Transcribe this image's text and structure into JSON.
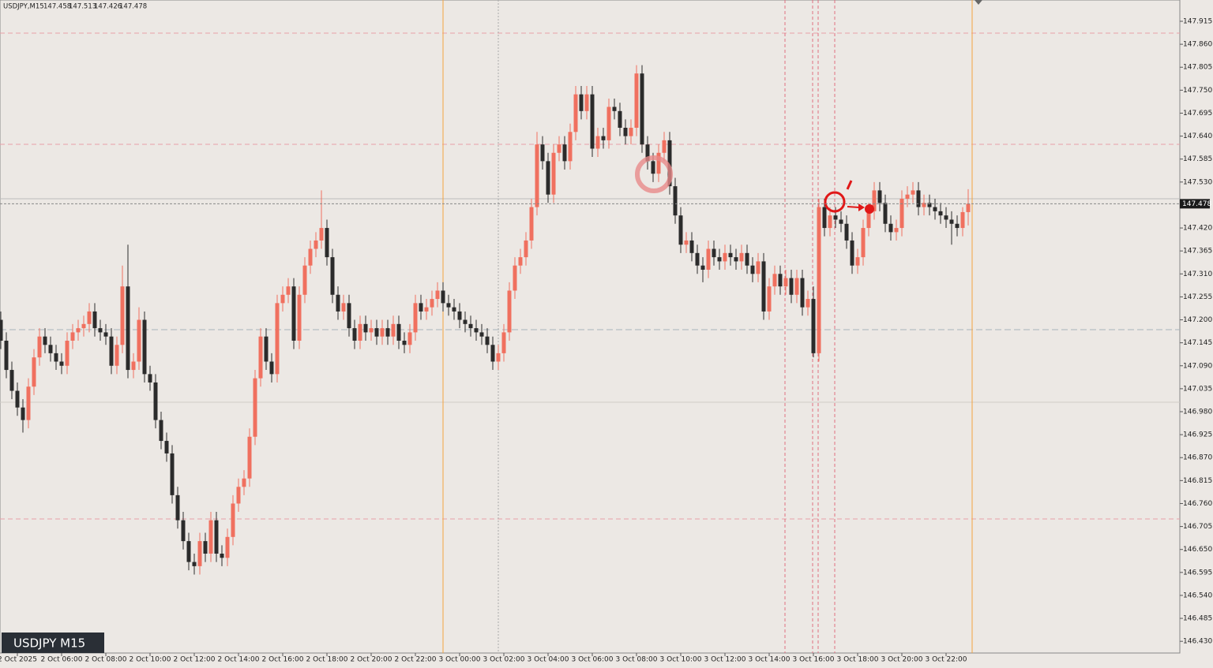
{
  "chart_data": {
    "type": "candlestick",
    "symbol": "USDJPY,M15",
    "watermark": "USDJPY M15",
    "bull_color": "#f0705f",
    "bear_color": "#2b2b2b",
    "ylim": [
      146.402,
      147.966
    ],
    "yticks": [
      147.915,
      {
        "value": 147.86,
        "label": "147.860"
      },
      147.805,
      {
        "value": 147.75,
        "label": "147.750"
      },
      147.695,
      {
        "value": 147.64,
        "label": "147.640"
      },
      147.585,
      {
        "value": 147.53,
        "label": "147.530"
      },
      {
        "value": 147.42,
        "label": "147.420"
      },
      147.365,
      {
        "value": 147.31,
        "label": "147.310"
      },
      147.255,
      {
        "value": 147.2,
        "label": "147.200"
      },
      147.145,
      {
        "value": 147.09,
        "label": "147.090"
      },
      147.035,
      {
        "value": 146.98,
        "label": "146.980"
      },
      146.925,
      {
        "value": 146.87,
        "label": "146.870"
      },
      146.815,
      {
        "value": 146.76,
        "label": "146.760"
      },
      146.705,
      {
        "value": 146.65,
        "label": "146.650"
      },
      146.595,
      {
        "value": 146.54,
        "label": "146.540"
      },
      146.485,
      {
        "value": 146.43,
        "label": "146.430"
      }
    ],
    "categories": [
      null,
      null,
      null,
      "2 Oct 2025",
      null,
      null,
      null,
      null,
      null,
      null,
      null,
      "2 Oct 06:00",
      null,
      null,
      null,
      null,
      null,
      null,
      null,
      "2 Oct 08:00",
      null,
      null,
      null,
      null,
      null,
      null,
      null,
      "2 Oct 10:00",
      null,
      null,
      null,
      null,
      null,
      null,
      null,
      "2 Oct 12:00",
      null,
      null,
      null,
      null,
      null,
      null,
      null,
      "2 Oct 14:00",
      null,
      null,
      null,
      null,
      null,
      null,
      null,
      "2 Oct 16:00",
      null,
      null,
      null,
      null,
      null,
      null,
      null,
      "2 Oct 18:00",
      null,
      null,
      null,
      null,
      null,
      null,
      null,
      "2 Oct 20:00",
      null,
      null,
      null,
      null,
      null,
      null,
      null,
      "2 Oct 22:00",
      null,
      null,
      null,
      null,
      null,
      null,
      null,
      "3 Oct 00:00",
      null,
      null,
      null,
      null,
      null,
      null,
      null,
      "3 Oct 02:00",
      null,
      null,
      null,
      null,
      null,
      null,
      null,
      "3 Oct 04:00",
      null,
      null,
      null,
      null,
      null,
      null,
      null,
      "3 Oct 06:00",
      null,
      null,
      null,
      null,
      null,
      null,
      null,
      "3 Oct 08:00",
      null,
      null,
      null,
      null,
      null,
      null,
      null,
      "3 Oct 10:00",
      null,
      null,
      null,
      null,
      null,
      null,
      null,
      "3 Oct 12:00",
      null,
      null,
      null,
      null,
      null,
      null,
      null,
      "3 Oct 14:00",
      null,
      null,
      null,
      null,
      null,
      null,
      null,
      "3 Oct 16:00",
      null,
      null,
      null,
      null,
      null,
      null,
      null,
      "3 Oct 18:00",
      null,
      null,
      null,
      null,
      null,
      null,
      null,
      "3 Oct 20:00",
      null,
      null,
      null,
      null,
      null,
      null,
      null,
      "3 Oct 22:00",
      null,
      null,
      null,
      null
    ],
    "candles": [
      [
        147.2,
        147.22,
        147.13,
        147.15
      ],
      [
        147.15,
        147.17,
        147.06,
        147.08
      ],
      [
        147.08,
        147.1,
        147.01,
        147.03
      ],
      [
        147.03,
        147.05,
        146.97,
        146.99
      ],
      [
        146.99,
        147.01,
        146.93,
        146.96
      ],
      [
        146.96,
        147.06,
        146.94,
        147.04
      ],
      [
        147.04,
        147.13,
        147.02,
        147.11
      ],
      [
        147.11,
        147.18,
        147.09,
        147.16
      ],
      [
        147.16,
        147.18,
        147.12,
        147.14
      ],
      [
        147.14,
        147.16,
        147.1,
        147.12
      ],
      [
        147.12,
        147.14,
        147.08,
        147.1
      ],
      [
        147.1,
        147.12,
        147.07,
        147.09
      ],
      [
        147.09,
        147.17,
        147.07,
        147.15
      ],
      [
        147.15,
        147.19,
        147.13,
        147.17
      ],
      [
        147.17,
        147.2,
        147.15,
        147.18
      ],
      [
        147.18,
        147.21,
        147.16,
        147.19
      ],
      [
        147.19,
        147.24,
        147.17,
        147.22
      ],
      [
        147.22,
        147.24,
        147.16,
        147.18
      ],
      [
        147.18,
        147.2,
        147.15,
        147.17
      ],
      [
        147.17,
        147.19,
        147.14,
        147.16
      ],
      [
        147.16,
        147.18,
        147.07,
        147.09
      ],
      [
        147.09,
        147.16,
        147.07,
        147.14
      ],
      [
        147.14,
        147.33,
        147.12,
        147.28
      ],
      [
        147.28,
        147.38,
        147.06,
        147.08
      ],
      [
        147.08,
        147.12,
        147.06,
        147.1
      ],
      [
        147.1,
        147.23,
        147.08,
        147.2
      ],
      [
        147.2,
        147.22,
        147.05,
        147.07
      ],
      [
        147.07,
        147.09,
        147.03,
        147.05
      ],
      [
        147.05,
        147.07,
        146.94,
        146.96
      ],
      [
        146.96,
        146.98,
        146.89,
        146.91
      ],
      [
        146.91,
        146.93,
        146.86,
        146.88
      ],
      [
        146.88,
        146.9,
        146.76,
        146.78
      ],
      [
        146.78,
        146.8,
        146.7,
        146.72
      ],
      [
        146.72,
        146.74,
        146.65,
        146.67
      ],
      [
        146.67,
        146.69,
        146.6,
        146.62
      ],
      [
        146.62,
        146.64,
        146.59,
        146.61
      ],
      [
        146.61,
        146.69,
        146.59,
        146.67
      ],
      [
        146.67,
        146.69,
        146.62,
        146.64
      ],
      [
        146.64,
        146.74,
        146.62,
        146.72
      ],
      [
        146.72,
        146.74,
        146.62,
        146.64
      ],
      [
        146.64,
        146.66,
        146.61,
        146.63
      ],
      [
        146.63,
        146.7,
        146.61,
        146.68
      ],
      [
        146.68,
        146.78,
        146.66,
        146.76
      ],
      [
        146.76,
        146.82,
        146.74,
        146.8
      ],
      [
        146.8,
        146.84,
        146.78,
        146.82
      ],
      [
        146.82,
        146.94,
        146.8,
        146.92
      ],
      [
        146.92,
        147.08,
        146.9,
        147.06
      ],
      [
        147.06,
        147.18,
        147.04,
        147.16
      ],
      [
        147.16,
        147.18,
        147.08,
        147.1
      ],
      [
        147.1,
        147.12,
        147.05,
        147.07
      ],
      [
        147.07,
        147.26,
        147.05,
        147.24
      ],
      [
        147.24,
        147.28,
        147.22,
        147.26
      ],
      [
        147.26,
        147.3,
        147.24,
        147.28
      ],
      [
        147.28,
        147.3,
        147.13,
        147.15
      ],
      [
        147.15,
        147.28,
        147.13,
        147.26
      ],
      [
        147.26,
        147.35,
        147.24,
        147.33
      ],
      [
        147.33,
        147.39,
        147.31,
        147.37
      ],
      [
        147.37,
        147.41,
        147.35,
        147.39
      ],
      [
        147.39,
        147.51,
        147.37,
        147.42
      ],
      [
        147.42,
        147.44,
        147.33,
        147.35
      ],
      [
        147.35,
        147.37,
        147.24,
        147.26
      ],
      [
        147.26,
        147.28,
        147.2,
        147.22
      ],
      [
        147.22,
        147.26,
        147.2,
        147.24
      ],
      [
        147.24,
        147.26,
        147.16,
        147.18
      ],
      [
        147.18,
        147.2,
        147.13,
        147.15
      ],
      [
        147.15,
        147.21,
        147.13,
        147.19
      ],
      [
        147.19,
        147.21,
        147.15,
        147.17
      ],
      [
        147.17,
        147.2,
        147.15,
        147.18
      ],
      [
        147.18,
        147.2,
        147.14,
        147.16
      ],
      [
        147.16,
        147.2,
        147.14,
        147.18
      ],
      [
        147.18,
        147.2,
        147.14,
        147.16
      ],
      [
        147.16,
        147.21,
        147.14,
        147.19
      ],
      [
        147.19,
        147.21,
        147.13,
        147.15
      ],
      [
        147.15,
        147.17,
        147.12,
        147.14
      ],
      [
        147.14,
        147.19,
        147.12,
        147.17
      ],
      [
        147.17,
        147.26,
        147.15,
        147.24
      ],
      [
        147.24,
        147.26,
        147.2,
        147.22
      ],
      [
        147.22,
        147.25,
        147.2,
        147.23
      ],
      [
        147.23,
        147.27,
        147.21,
        147.25
      ],
      [
        147.25,
        147.29,
        147.23,
        147.27
      ],
      [
        147.27,
        147.29,
        147.22,
        147.24
      ],
      [
        147.24,
        147.26,
        147.21,
        147.23
      ],
      [
        147.23,
        147.25,
        147.2,
        147.22
      ],
      [
        147.22,
        147.24,
        147.18,
        147.2
      ],
      [
        147.2,
        147.22,
        147.17,
        147.19
      ],
      [
        147.19,
        147.21,
        147.16,
        147.18
      ],
      [
        147.18,
        147.2,
        147.15,
        147.17
      ],
      [
        147.17,
        147.19,
        147.14,
        147.16
      ],
      [
        147.16,
        147.18,
        147.12,
        147.14
      ],
      [
        147.14,
        147.16,
        147.08,
        147.1
      ],
      [
        147.1,
        147.14,
        147.08,
        147.12
      ],
      [
        147.12,
        147.19,
        147.1,
        147.17
      ],
      [
        147.17,
        147.29,
        147.15,
        147.27
      ],
      [
        147.27,
        147.35,
        147.25,
        147.33
      ],
      [
        147.33,
        147.37,
        147.31,
        147.35
      ],
      [
        147.35,
        147.41,
        147.33,
        147.39
      ],
      [
        147.39,
        147.49,
        147.37,
        147.47
      ],
      [
        147.47,
        147.65,
        147.45,
        147.62
      ],
      [
        147.62,
        147.64,
        147.56,
        147.58
      ],
      [
        147.58,
        147.6,
        147.48,
        147.5
      ],
      [
        147.5,
        147.62,
        147.48,
        147.6
      ],
      [
        147.6,
        147.64,
        147.58,
        147.62
      ],
      [
        147.62,
        147.64,
        147.56,
        147.58
      ],
      [
        147.58,
        147.67,
        147.56,
        147.65
      ],
      [
        147.65,
        147.76,
        147.63,
        147.74
      ],
      [
        147.74,
        147.76,
        147.68,
        147.7
      ],
      [
        147.7,
        147.76,
        147.68,
        147.74
      ],
      [
        147.74,
        147.76,
        147.59,
        147.61
      ],
      [
        147.61,
        147.66,
        147.59,
        147.64
      ],
      [
        147.64,
        147.66,
        147.61,
        147.63
      ],
      [
        147.63,
        147.73,
        147.61,
        147.71
      ],
      [
        147.71,
        147.73,
        147.68,
        147.7
      ],
      [
        147.7,
        147.72,
        147.64,
        147.66
      ],
      [
        147.66,
        147.68,
        147.62,
        147.64
      ],
      [
        147.64,
        147.68,
        147.62,
        147.66
      ],
      [
        147.66,
        147.81,
        147.64,
        147.79
      ],
      [
        147.79,
        147.81,
        147.6,
        147.62
      ],
      [
        147.62,
        147.64,
        147.56,
        147.58
      ],
      [
        147.58,
        147.6,
        147.53,
        147.55
      ],
      [
        147.55,
        147.62,
        147.53,
        147.6
      ],
      [
        147.6,
        147.65,
        147.58,
        147.63
      ],
      [
        147.63,
        147.65,
        147.5,
        147.52
      ],
      [
        147.52,
        147.54,
        147.43,
        147.45
      ],
      [
        147.45,
        147.47,
        147.36,
        147.38
      ],
      [
        147.38,
        147.41,
        147.36,
        147.39
      ],
      [
        147.39,
        147.41,
        147.34,
        147.36
      ],
      [
        147.36,
        147.38,
        147.31,
        147.33
      ],
      [
        147.33,
        147.35,
        147.29,
        147.32
      ],
      [
        147.32,
        147.39,
        147.3,
        147.37
      ],
      [
        147.37,
        147.39,
        147.33,
        147.35
      ],
      [
        147.35,
        147.37,
        147.32,
        147.34
      ],
      [
        147.34,
        147.38,
        147.32,
        147.36
      ],
      [
        147.36,
        147.38,
        147.33,
        147.35
      ],
      [
        147.35,
        147.37,
        147.32,
        147.34
      ],
      [
        147.34,
        147.38,
        147.32,
        147.36
      ],
      [
        147.36,
        147.38,
        147.31,
        147.33
      ],
      [
        147.33,
        147.35,
        147.29,
        147.31
      ],
      [
        147.31,
        147.36,
        147.29,
        147.34
      ],
      [
        147.34,
        147.36,
        147.2,
        147.22
      ],
      [
        147.22,
        147.3,
        147.2,
        147.28
      ],
      [
        147.28,
        147.33,
        147.26,
        147.31
      ],
      [
        147.31,
        147.33,
        147.26,
        147.28
      ],
      [
        147.28,
        147.32,
        147.26,
        147.3
      ],
      [
        147.3,
        147.32,
        147.24,
        147.26
      ],
      [
        147.26,
        147.32,
        147.24,
        147.3
      ],
      [
        147.3,
        147.32,
        147.21,
        147.23
      ],
      [
        147.23,
        147.27,
        147.21,
        147.25
      ],
      [
        147.25,
        147.28,
        147.11,
        147.12
      ],
      [
        147.12,
        147.49,
        147.1,
        147.47
      ],
      [
        147.47,
        147.49,
        147.4,
        147.42
      ],
      [
        147.42,
        147.47,
        147.4,
        147.45
      ],
      [
        147.45,
        147.47,
        147.42,
        147.44
      ],
      [
        147.44,
        147.46,
        147.41,
        147.43
      ],
      [
        147.43,
        147.45,
        147.37,
        147.39
      ],
      [
        147.39,
        147.41,
        147.31,
        147.33
      ],
      [
        147.33,
        147.37,
        147.31,
        147.35
      ],
      [
        147.35,
        147.44,
        147.33,
        147.42
      ],
      [
        147.42,
        147.48,
        147.4,
        147.46
      ],
      [
        147.46,
        147.53,
        147.44,
        147.51
      ],
      [
        147.51,
        147.53,
        147.46,
        147.48
      ],
      [
        147.48,
        147.5,
        147.41,
        147.43
      ],
      [
        147.43,
        147.45,
        147.39,
        147.41
      ],
      [
        147.41,
        147.44,
        147.39,
        147.42
      ],
      [
        147.42,
        147.51,
        147.4,
        147.49
      ],
      [
        147.49,
        147.52,
        147.47,
        147.5
      ],
      [
        147.5,
        147.53,
        147.48,
        147.51
      ],
      [
        147.51,
        147.53,
        147.45,
        147.47
      ],
      [
        147.47,
        147.5,
        147.45,
        147.48
      ],
      [
        147.48,
        147.5,
        147.45,
        147.47
      ],
      [
        147.47,
        147.49,
        147.44,
        147.46
      ],
      [
        147.46,
        147.48,
        147.43,
        147.45
      ],
      [
        147.45,
        147.47,
        147.42,
        147.44
      ],
      [
        147.44,
        147.46,
        147.38,
        147.43
      ],
      [
        147.43,
        147.45,
        147.4,
        147.42
      ],
      [
        147.42,
        147.47,
        147.4,
        147.458
      ],
      [
        147.458,
        147.513,
        147.426,
        147.478
      ]
    ]
  }
}
